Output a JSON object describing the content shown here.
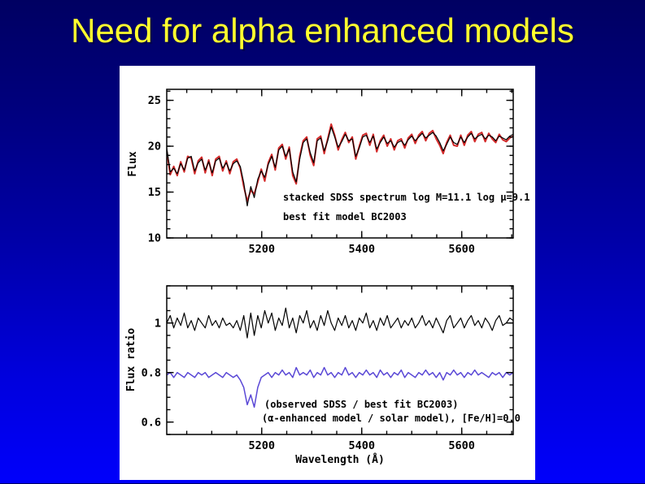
{
  "slide": {
    "title": "Need for alpha enhanced models"
  },
  "colors": {
    "background_top": "#000062",
    "background_bottom": "#0000fb",
    "title": "#ffff2e",
    "panel": "#ffffff",
    "axis": "#000000",
    "sdss_black": "#000000",
    "model_red": "#d42a2a",
    "ratio_blue": "#5a48d6",
    "ratio_blue_text": "#4433cc"
  },
  "chart_data": [
    {
      "type": "line",
      "name": "sdss-vs-model-spectrum",
      "title": "",
      "xlabel": "",
      "ylabel": "Flux",
      "xlim": [
        5010,
        5703
      ],
      "ylim": [
        10,
        26.2
      ],
      "x_major_ticks": [
        5200,
        5400,
        5600
      ],
      "x_major_labels": [
        "5200",
        "5400",
        "5600"
      ],
      "x_minor_step": 50,
      "y_major_ticks": [
        10,
        15,
        20,
        25
      ],
      "y_major_labels": [
        "10",
        "15",
        "20",
        "25"
      ],
      "y_minor_step": 1,
      "grid": false,
      "legend_position": "inside-lower-middle",
      "x": [
        5010,
        5017,
        5024,
        5031,
        5038,
        5045,
        5052,
        5059,
        5066,
        5073,
        5080,
        5087,
        5094,
        5101,
        5108,
        5115,
        5122,
        5129,
        5136,
        5143,
        5150,
        5157,
        5164,
        5171,
        5178,
        5185,
        5192,
        5199,
        5206,
        5213,
        5220,
        5227,
        5234,
        5241,
        5248,
        5255,
        5262,
        5269,
        5276,
        5283,
        5290,
        5297,
        5304,
        5311,
        5318,
        5325,
        5332,
        5339,
        5346,
        5353,
        5360,
        5367,
        5374,
        5381,
        5388,
        5395,
        5402,
        5409,
        5416,
        5423,
        5430,
        5437,
        5444,
        5451,
        5458,
        5465,
        5472,
        5479,
        5486,
        5493,
        5500,
        5507,
        5514,
        5521,
        5528,
        5535,
        5542,
        5549,
        5556,
        5563,
        5570,
        5577,
        5584,
        5591,
        5598,
        5605,
        5612,
        5619,
        5626,
        5633,
        5640,
        5647,
        5654,
        5661,
        5668,
        5675,
        5682,
        5689,
        5696,
        5703
      ],
      "series": [
        {
          "name": "stacked SDSS spectrum log M=11.1 log μ=9.1",
          "color": "#000000",
          "width": 1.2,
          "values": [
            19.8,
            17.2,
            17.6,
            17.0,
            18.1,
            17.4,
            18.7,
            18.9,
            17.3,
            18.2,
            18.6,
            17.4,
            18.3,
            17.1,
            18.4,
            18.7,
            17.6,
            18.2,
            17.3,
            18.1,
            18.4,
            17.8,
            16.0,
            13.5,
            15.6,
            14.4,
            16.4,
            17.3,
            16.6,
            18.0,
            18.9,
            17.7,
            19.6,
            20.0,
            18.9,
            19.7,
            17.2,
            16.1,
            18.6,
            20.4,
            20.8,
            19.3,
            18.2,
            20.6,
            20.9,
            19.5,
            20.6,
            22.1,
            21.0,
            19.9,
            20.5,
            21.3,
            20.6,
            20.8,
            18.9,
            19.8,
            21.0,
            21.2,
            20.4,
            21.1,
            19.7,
            20.4,
            21.0,
            20.3,
            20.6,
            19.9,
            20.4,
            20.6,
            20.1,
            20.7,
            21.1,
            20.6,
            21.0,
            21.4,
            20.9,
            21.2,
            21.5,
            21.1,
            20.4,
            19.5,
            20.2,
            21.0,
            20.4,
            20.2,
            21.0,
            20.4,
            21.0,
            21.4,
            20.8,
            21.1,
            21.3,
            20.8,
            21.2,
            21.0,
            20.6,
            21.1,
            20.9,
            20.7,
            21.1,
            21.3
          ]
        },
        {
          "name": "best fit model BC2003",
          "color": "#d42a2a",
          "width": 2,
          "values": [
            19.5,
            16.9,
            17.8,
            16.8,
            18.3,
            17.2,
            18.9,
            18.7,
            17.0,
            18.4,
            18.8,
            17.1,
            18.5,
            16.8,
            18.6,
            18.9,
            17.3,
            18.4,
            17.0,
            18.3,
            18.6,
            17.6,
            15.6,
            14.0,
            15.2,
            14.8,
            16.1,
            17.5,
            16.2,
            18.2,
            19.1,
            17.4,
            19.8,
            20.2,
            18.6,
            19.9,
            16.8,
            15.9,
            18.9,
            20.6,
            21.0,
            19.0,
            17.9,
            20.8,
            21.1,
            19.2,
            20.8,
            22.4,
            21.2,
            19.6,
            20.7,
            21.5,
            20.4,
            21.0,
            18.6,
            20.0,
            21.2,
            21.4,
            20.1,
            21.3,
            19.4,
            20.6,
            21.2,
            20.0,
            20.8,
            19.6,
            20.6,
            20.8,
            19.8,
            20.9,
            21.3,
            20.3,
            21.2,
            21.6,
            20.6,
            21.4,
            21.7,
            20.8,
            20.1,
            19.2,
            20.4,
            21.2,
            20.1,
            20.0,
            21.2,
            20.1,
            21.2,
            21.6,
            20.5,
            21.3,
            21.5,
            20.5,
            21.4,
            20.8,
            20.4,
            21.3,
            20.7,
            20.5,
            20.9,
            21.1
          ]
        }
      ],
      "legend": [
        {
          "text": "stacked SDSS spectrum log M=11.1 log μ=9.1",
          "color": "#000000"
        },
        {
          "text": "best fit model BC2003",
          "color": "#d42a2a"
        }
      ]
    },
    {
      "type": "line",
      "name": "flux-ratio",
      "title": "",
      "xlabel": "Wavelength (Å)",
      "ylabel": "Flux ratio",
      "xlim": [
        5010,
        5703
      ],
      "ylim": [
        0.55,
        1.15
      ],
      "x_major_ticks": [
        5200,
        5400,
        5600
      ],
      "x_major_labels": [
        "5200",
        "5400",
        "5600"
      ],
      "x_minor_step": 50,
      "y_major_ticks": [
        0.6,
        0.8,
        1.0
      ],
      "y_major_labels": [
        "0.6",
        "0.8",
        "1"
      ],
      "y_minor_step": 0.05,
      "grid": false,
      "legend_position": "inside-lower-middle",
      "x": [
        5010,
        5017,
        5024,
        5031,
        5038,
        5045,
        5052,
        5059,
        5066,
        5073,
        5080,
        5087,
        5094,
        5101,
        5108,
        5115,
        5122,
        5129,
        5136,
        5143,
        5150,
        5157,
        5164,
        5171,
        5178,
        5185,
        5192,
        5199,
        5206,
        5213,
        5220,
        5227,
        5234,
        5241,
        5248,
        5255,
        5262,
        5269,
        5276,
        5283,
        5290,
        5297,
        5304,
        5311,
        5318,
        5325,
        5332,
        5339,
        5346,
        5353,
        5360,
        5367,
        5374,
        5381,
        5388,
        5395,
        5402,
        5409,
        5416,
        5423,
        5430,
        5437,
        5444,
        5451,
        5458,
        5465,
        5472,
        5479,
        5486,
        5493,
        5500,
        5507,
        5514,
        5521,
        5528,
        5535,
        5542,
        5549,
        5556,
        5563,
        5570,
        5577,
        5584,
        5591,
        5598,
        5605,
        5612,
        5619,
        5626,
        5633,
        5640,
        5647,
        5654,
        5661,
        5668,
        5675,
        5682,
        5689,
        5696,
        5703
      ],
      "series": [
        {
          "name": "(observed SDSS / best fit BC2003)",
          "color": "#000000",
          "width": 1.2,
          "values": [
            1.0,
            1.03,
            0.98,
            1.02,
            0.99,
            1.04,
            0.98,
            1.01,
            0.97,
            1.02,
            1.0,
            0.98,
            1.03,
            0.99,
            1.01,
            0.98,
            1.02,
            0.99,
            1.0,
            0.98,
            1.01,
            0.97,
            1.03,
            0.94,
            1.04,
            0.95,
            1.03,
            0.98,
            1.05,
            1.0,
            1.04,
            0.97,
            1.02,
            0.99,
            1.06,
            0.98,
            1.02,
            0.96,
            1.03,
            1.0,
            1.05,
            0.98,
            1.01,
            0.97,
            1.03,
            0.99,
            1.05,
            1.0,
            0.97,
            1.02,
            0.99,
            1.03,
            0.98,
            1.01,
            0.97,
            1.02,
            1.0,
            1.04,
            0.98,
            1.01,
            0.97,
            1.02,
            0.99,
            1.03,
            0.98,
            1.0,
            1.02,
            0.98,
            1.01,
            0.99,
            1.02,
            0.98,
            1.0,
            1.03,
            0.99,
            1.01,
            0.98,
            1.02,
            0.99,
            0.96,
            1.01,
            1.03,
            0.98,
            1.0,
            1.02,
            0.98,
            1.01,
            1.03,
            0.99,
            1.01,
            0.98,
            1.02,
            1.0,
            0.97,
            1.01,
            1.03,
            0.99,
            1.0,
            1.02,
            1.01
          ]
        },
        {
          "name": "(α-enhanced model / solar model), [Fe/H]=0.0",
          "color": "#5a48d6",
          "width": 1.5,
          "values": [
            0.79,
            0.8,
            0.78,
            0.8,
            0.79,
            0.78,
            0.8,
            0.79,
            0.78,
            0.8,
            0.79,
            0.8,
            0.78,
            0.79,
            0.8,
            0.79,
            0.78,
            0.8,
            0.79,
            0.78,
            0.79,
            0.77,
            0.74,
            0.67,
            0.71,
            0.66,
            0.74,
            0.78,
            0.79,
            0.8,
            0.78,
            0.8,
            0.79,
            0.81,
            0.79,
            0.8,
            0.78,
            0.82,
            0.79,
            0.8,
            0.79,
            0.81,
            0.78,
            0.8,
            0.79,
            0.82,
            0.79,
            0.8,
            0.78,
            0.8,
            0.79,
            0.82,
            0.79,
            0.8,
            0.78,
            0.8,
            0.79,
            0.81,
            0.79,
            0.8,
            0.78,
            0.81,
            0.79,
            0.8,
            0.78,
            0.8,
            0.79,
            0.81,
            0.78,
            0.8,
            0.79,
            0.78,
            0.8,
            0.79,
            0.81,
            0.79,
            0.8,
            0.78,
            0.8,
            0.77,
            0.8,
            0.79,
            0.81,
            0.79,
            0.8,
            0.78,
            0.8,
            0.79,
            0.81,
            0.79,
            0.8,
            0.79,
            0.78,
            0.8,
            0.79,
            0.8,
            0.78,
            0.8,
            0.79,
            0.8
          ]
        }
      ],
      "legend": [
        {
          "text": "(observed SDSS / best fit BC2003)",
          "color": "#000000"
        },
        {
          "text": "(α-enhanced model / solar model), [Fe/H]=0.0",
          "color": "#4433cc"
        }
      ]
    }
  ]
}
